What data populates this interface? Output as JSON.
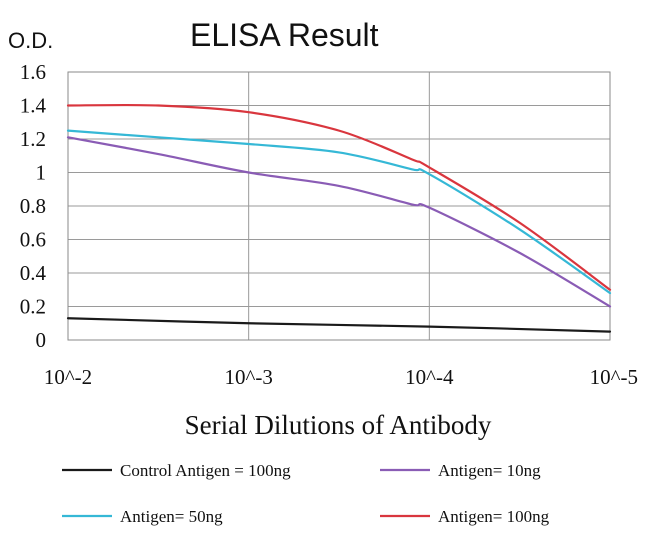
{
  "chart_data": {
    "type": "line",
    "title": "ELISA Result",
    "ylabel": "O.D.",
    "xlabel": "Serial Dilutions of Antibody",
    "categories": [
      "10^-2",
      "10^-3",
      "10^-4",
      "10^-5"
    ],
    "yticks": [
      "0",
      "0.2",
      "0.4",
      "0.6",
      "0.8",
      "1",
      "1.2",
      "1.4",
      "1.6"
    ],
    "ylim": [
      0,
      1.6
    ],
    "grid": true,
    "legend_position": "bottom",
    "series": [
      {
        "name": "Control Antigen = 100ng",
        "color": "#1a1a1a",
        "points": [
          [
            0,
            0.13
          ],
          [
            1,
            0.1
          ],
          [
            2,
            0.08
          ],
          [
            3,
            0.05
          ]
        ]
      },
      {
        "name": "Antigen= 10ng",
        "color": "#8a5cb5",
        "points": [
          [
            0,
            1.21
          ],
          [
            0.5,
            1.11
          ],
          [
            1,
            1.0
          ],
          [
            1.5,
            0.92
          ],
          [
            1.9,
            0.81
          ],
          [
            2,
            0.79
          ],
          [
            2.5,
            0.52
          ],
          [
            3,
            0.2
          ]
        ]
      },
      {
        "name": "Antigen= 50ng",
        "color": "#35b8d6",
        "points": [
          [
            0,
            1.25
          ],
          [
            0.5,
            1.21
          ],
          [
            1,
            1.17
          ],
          [
            1.5,
            1.12
          ],
          [
            1.9,
            1.02
          ],
          [
            2,
            0.99
          ],
          [
            2.5,
            0.66
          ],
          [
            3,
            0.28
          ]
        ]
      },
      {
        "name": "Antigen= 100ng",
        "color": "#d9363e",
        "points": [
          [
            0,
            1.4
          ],
          [
            0.5,
            1.4
          ],
          [
            1,
            1.36
          ],
          [
            1.5,
            1.25
          ],
          [
            1.9,
            1.08
          ],
          [
            2,
            1.03
          ],
          [
            2.5,
            0.7
          ],
          [
            3,
            0.3
          ]
        ]
      }
    ]
  }
}
